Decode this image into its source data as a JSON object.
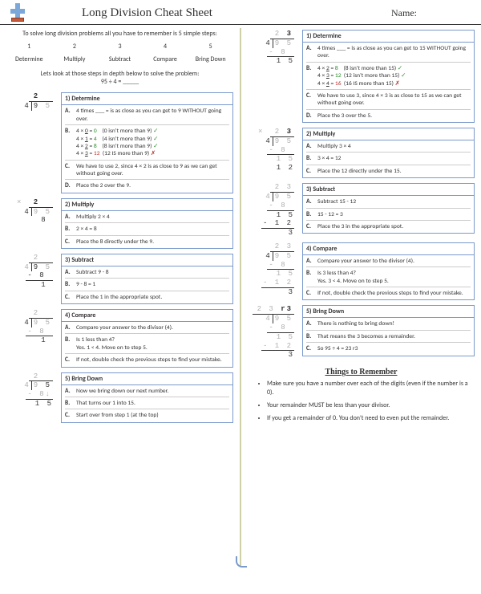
{
  "header": {
    "title": "Long Division Cheat Sheet",
    "name_label": "Name:"
  },
  "intro": "To solve long division problems all you have to remember is 5 simple steps:",
  "step_nums": {
    "n1": "1",
    "n2": "2",
    "n3": "3",
    "n4": "4",
    "n5": "5"
  },
  "step_names": {
    "s1": "Determine",
    "s2": "Multiply",
    "s3": "Subtract",
    "s4": "Compare",
    "s5": "Bring Down"
  },
  "prob": "Lets look at those steps in depth below to solve the problem:",
  "prob_eq": "95 ÷ 4 = _____",
  "left": {
    "s1": {
      "h": "1) Determine",
      "a": "4 times ___ = is as close as you can get to 9 WITHOUT going over.",
      "b1a": "4 × 0 = 0",
      "b1b": "(0 isn't more than 9)",
      "b2a": "4 × 1 = 4",
      "b2b": "(4 isn't more than 9)",
      "b3a": "4 × 2 = 8",
      "b3b": "(8 isn't more than 9)",
      "b4a": "4 × 3 = 12",
      "b4b": "(12 IS more than 9)",
      "c": "We have to use 2, since 4 × 2 is as close to 9 as we can get without going over.",
      "d": "Place the 2 over the 9."
    },
    "s2": {
      "h": "2) Multiply",
      "a": "Multiply 2 × 4",
      "b": "2 × 4 = 8",
      "c": "Place the 8 directly under the 9."
    },
    "s3": {
      "h": "3) Subtract",
      "a": "Subtract 9 - 8",
      "b": "9 - 8 = 1",
      "c": "Place the 1 in the appropriate spot."
    },
    "s4": {
      "h": "4) Compare",
      "a": "Compare your answer to the divisor (4).",
      "b": "Is 1 less than 4?\nYes. 1 < 4. Move on to step 5.",
      "c": "If not, double check the previous steps to find your mistake."
    },
    "s5": {
      "h": "5) Bring Down",
      "a": "Now we bring down our next number.",
      "b": "That turns our 1 into 15.",
      "c": "Start over from step 1 (at the top)"
    }
  },
  "right": {
    "s1": {
      "h": "1) Determine",
      "a": "4 times ___ = is as close as you can get to 15 WITHOUT going over.",
      "b1a": "4 × 2 = 8",
      "b1b": "(8 isn't more than 15)",
      "b2a": "4 × 3 = 12",
      "b2b": "(12 isn't more than 15)",
      "b3a": "4 × 4 = 16",
      "b3b": "(16 IS more than 15)",
      "c": "We have to use 3, since 4 × 3 is as close to 15 as we can get without going over.",
      "d": "Place the 3 over the 5."
    },
    "s2": {
      "h": "2) Multiply",
      "a": "Multiply 3 × 4",
      "b": "3 × 4 = 12",
      "c": "Place the 12 directly under the 15."
    },
    "s3": {
      "h": "3) Subtract",
      "a": "Subtract 15 - 12",
      "b": "15 - 12 = 3",
      "c": "Place the 3 in the appropriate spot."
    },
    "s4": {
      "h": "4) Compare",
      "a": "Compare your answer to the divisor (4).",
      "b": "Is 3 less than 4?\nYes. 3 < 4. Move on to step 5.",
      "c": "If not, double check the previous steps to find your mistake."
    },
    "s5": {
      "h": "5) Bring Down",
      "a": "There is nothing to bring down!",
      "b": "That means the 3 becomes a remainder.",
      "c": "So 95 ÷ 4 = 23 r3"
    }
  },
  "things": {
    "h": "Things to Remember",
    "t1": "Make sure you have a number over each of the digits (even if the number is a 0).",
    "t2": "Your remainder MUST be less than your divisor.",
    "t3": "If you get a remainder of 0. You don't need to even put the remainder."
  },
  "labels": {
    "A": "A.",
    "B": "B.",
    "C": "C.",
    "D": "D."
  },
  "work": {
    "L1q": "2  ",
    "L1d": "4",
    "L1dv": "9 5",
    "L2q": "2  ",
    "L2d": "4",
    "L2dv": "9 5",
    "L2s": "  8 ",
    "L3q": "2  ",
    "L3d": "4",
    "L3dv": "9 5",
    "L3s": "- 8 ",
    "L3r": "1 ",
    "L4q": "2  ",
    "L4d": "4",
    "L4dv": "9 5",
    "L4s": "- 8 ",
    "L4r": "1 ",
    "L5q": "2  ",
    "L5d": "4",
    "L5dv": "9 5",
    "L5s": "- 8↓",
    "L5r": "1 5",
    "R1q": "2 3",
    "R1d": "4",
    "R1dv": "9 5",
    "R1s": "- 8 ",
    "R1r": "1 5",
    "R2q": "2 3",
    "R2d": "4",
    "R2dv": "9 5",
    "R2s": "- 8 ",
    "R2r": "1 5",
    "R2s2": " 1 2",
    "R3q": "2 3",
    "R3d": "4",
    "R3dv": "9 5",
    "R3s": "- 8 ",
    "R3r": "1 5",
    "R3s2": "- 1 2",
    "R3r2": "3",
    "R4q": "2 3",
    "R4d": "4",
    "R4dv": "9 5",
    "R4s": "- 8 ",
    "R4r": "1 5",
    "R4s2": "- 1 2",
    "R4r2": "3",
    "R5q": "2 3 r3",
    "R5d": "4",
    "R5dv": "9 5",
    "R5s": "- 8 ",
    "R5r": "1 5",
    "R5s2": "- 1 2",
    "R5r2": "3"
  },
  "marks": {
    "ok": "✓",
    "no": "✗"
  },
  "x": "×"
}
